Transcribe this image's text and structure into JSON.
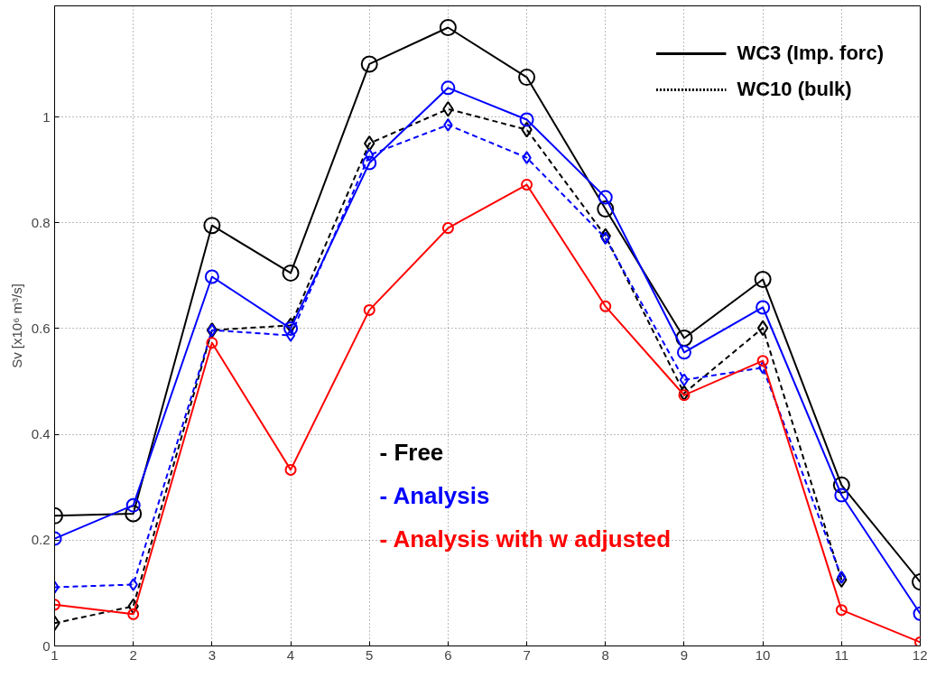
{
  "chart_data": {
    "type": "line",
    "ylabel": "Sv [x10⁶ m³/s]",
    "x": [
      1,
      2,
      3,
      4,
      5,
      6,
      7,
      8,
      9,
      10,
      11,
      12
    ],
    "xlim": [
      1,
      12
    ],
    "xticks": [
      1,
      2,
      3,
      4,
      5,
      6,
      7,
      8,
      9,
      10,
      11,
      12
    ],
    "ylim": [
      0,
      1.21
    ],
    "yticks": [
      0,
      0.2,
      0.4,
      0.6,
      0.8,
      1
    ],
    "grid": true,
    "series": [
      {
        "color": "#000000",
        "marker": "circle",
        "line_style": "solid",
        "values": [
          0.246,
          0.25,
          0.795,
          0.705,
          1.1,
          1.169,
          1.075,
          0.826,
          0.582,
          0.693,
          0.304,
          0.121
        ]
      },
      {
        "color": "#000000",
        "marker": "diamond",
        "line_style": "dashed",
        "values": [
          0.043,
          0.075,
          0.597,
          0.606,
          0.95,
          1.015,
          0.976,
          0.775,
          0.478,
          0.601,
          0.125,
          null
        ]
      },
      {
        "color": "#0000ff",
        "marker": "circle",
        "line_style": "solid",
        "values": [
          0.203,
          0.266,
          0.698,
          0.6,
          0.913,
          1.055,
          0.995,
          0.848,
          0.555,
          0.64,
          0.285,
          0.061
        ]
      },
      {
        "color": "#0000ff",
        "marker": "diamond",
        "line_style": "dashed",
        "values": [
          0.111,
          0.116,
          0.597,
          0.587,
          0.928,
          0.985,
          0.923,
          0.771,
          0.503,
          0.526,
          0.13,
          null
        ]
      },
      {
        "color": "#ff0000",
        "marker": "circle",
        "line_style": "solid",
        "values": [
          0.078,
          0.06,
          0.573,
          0.333,
          0.635,
          0.79,
          0.872,
          0.642,
          0.474,
          0.539,
          0.068,
          0.007
        ]
      }
    ],
    "annotations": [
      "WC3 (Imp. forc)",
      "WC10 (bulk)",
      "- Free",
      "- Analysis",
      "- Analysis with w adjusted"
    ]
  }
}
